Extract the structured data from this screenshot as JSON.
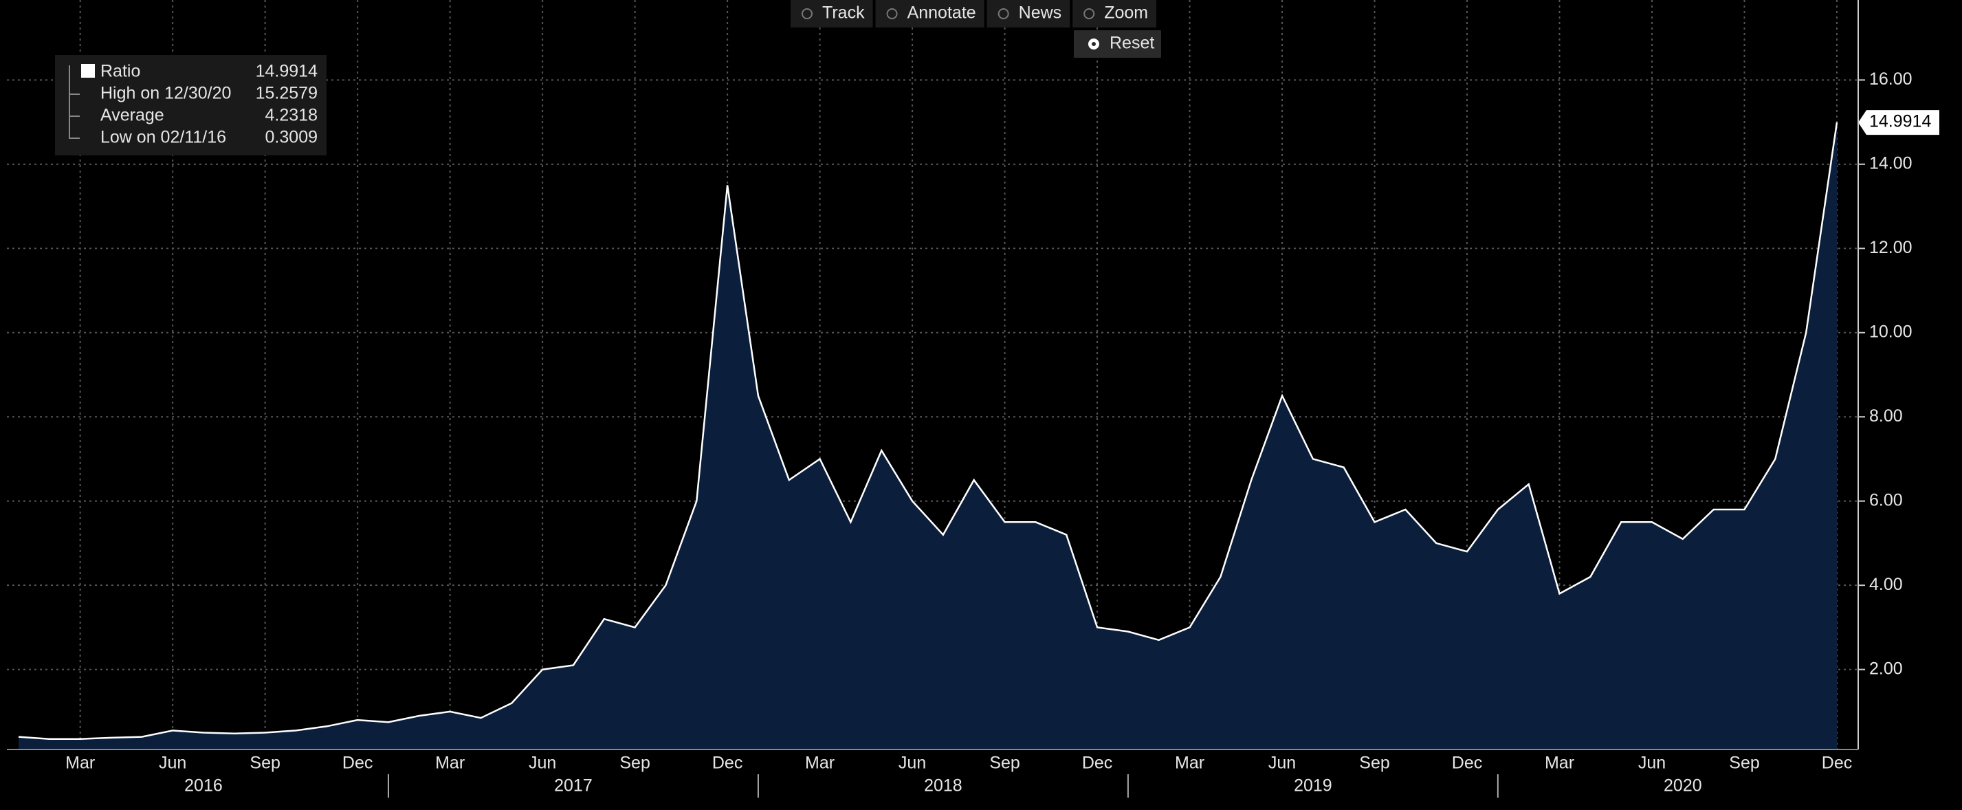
{
  "chart_data": {
    "type": "area",
    "toolbar": [
      "Track",
      "Annotate",
      "News",
      "Zoom"
    ],
    "reset": "Reset",
    "x": [
      "2016-01",
      "2016-02",
      "2016-03",
      "2016-04",
      "2016-05",
      "2016-06",
      "2016-07",
      "2016-08",
      "2016-09",
      "2016-10",
      "2016-11",
      "2016-12",
      "2017-01",
      "2017-02",
      "2017-03",
      "2017-04",
      "2017-05",
      "2017-06",
      "2017-07",
      "2017-08",
      "2017-09",
      "2017-10",
      "2017-11",
      "2017-12",
      "2018-01",
      "2018-02",
      "2018-03",
      "2018-04",
      "2018-05",
      "2018-06",
      "2018-07",
      "2018-08",
      "2018-09",
      "2018-10",
      "2018-11",
      "2018-12",
      "2019-01",
      "2019-02",
      "2019-03",
      "2019-04",
      "2019-05",
      "2019-06",
      "2019-07",
      "2019-08",
      "2019-09",
      "2019-10",
      "2019-11",
      "2019-12",
      "2020-01",
      "2020-02",
      "2020-03",
      "2020-04",
      "2020-05",
      "2020-06",
      "2020-07",
      "2020-08",
      "2020-09",
      "2020-10",
      "2020-11",
      "2020-12"
    ],
    "series": [
      {
        "name": "Ratio",
        "color": "#ffffff",
        "fill": "#0b1f3d",
        "values": [
          0.4,
          0.35,
          0.35,
          0.38,
          0.4,
          0.55,
          0.5,
          0.48,
          0.5,
          0.55,
          0.65,
          0.8,
          0.75,
          0.9,
          1.0,
          0.85,
          1.2,
          2.0,
          2.1,
          3.2,
          3.0,
          4.0,
          6.0,
          13.5,
          8.5,
          6.5,
          7.0,
          5.5,
          7.2,
          6.0,
          5.2,
          6.5,
          5.5,
          5.5,
          5.2,
          3.0,
          2.9,
          2.7,
          3.0,
          4.2,
          6.5,
          8.5,
          7.0,
          6.8,
          5.5,
          5.8,
          5.0,
          4.8,
          5.8,
          6.4,
          3.8,
          4.2,
          5.5,
          5.5,
          5.1,
          5.8,
          5.8,
          7.0,
          10.0,
          14.9914
        ]
      }
    ],
    "stats": [
      {
        "label": "High on 12/30/20",
        "value": 15.2579
      },
      {
        "label": "Average",
        "value": 4.2318
      },
      {
        "label": "Low on 02/11/16",
        "value": 0.3009
      }
    ],
    "xlim": [
      "2016-01",
      "2020-12"
    ],
    "xticks": [
      {
        "value": "2016-03",
        "label": "Mar"
      },
      {
        "value": "2016-06",
        "label": "Jun"
      },
      {
        "value": "2016-09",
        "label": "Sep"
      },
      {
        "value": "2016-12",
        "label": "Dec"
      },
      {
        "value": "2017-03",
        "label": "Mar"
      },
      {
        "value": "2017-06",
        "label": "Jun"
      },
      {
        "value": "2017-09",
        "label": "Sep"
      },
      {
        "value": "2017-12",
        "label": "Dec"
      },
      {
        "value": "2018-03",
        "label": "Mar"
      },
      {
        "value": "2018-06",
        "label": "Jun"
      },
      {
        "value": "2018-09",
        "label": "Sep"
      },
      {
        "value": "2018-12",
        "label": "Dec"
      },
      {
        "value": "2019-03",
        "label": "Mar"
      },
      {
        "value": "2019-06",
        "label": "Jun"
      },
      {
        "value": "2019-09",
        "label": "Sep"
      },
      {
        "value": "2019-12",
        "label": "Dec"
      },
      {
        "value": "2020-03",
        "label": "Mar"
      },
      {
        "value": "2020-06",
        "label": "Jun"
      },
      {
        "value": "2020-09",
        "label": "Sep"
      },
      {
        "value": "2020-12",
        "label": "Dec"
      }
    ],
    "years": [
      2016,
      2017,
      2018,
      2019,
      2020
    ],
    "ylim": [
      0.1,
      17.9
    ],
    "yticks": [
      {
        "value": 2,
        "label": "2.00"
      },
      {
        "value": 4,
        "label": "4.00"
      },
      {
        "value": 6,
        "label": "6.00"
      },
      {
        "value": 8,
        "label": "8.00"
      },
      {
        "value": 10,
        "label": "10.00"
      },
      {
        "value": 12,
        "label": "12.00"
      },
      {
        "value": 14,
        "label": "14.00"
      },
      {
        "value": 16,
        "label": "16.00"
      }
    ],
    "grid": true
  }
}
